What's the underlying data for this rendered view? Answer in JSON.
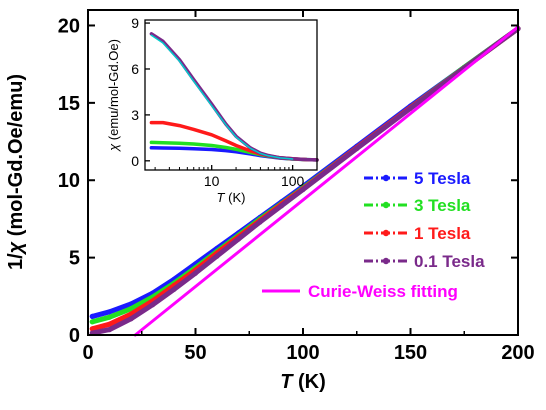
{
  "chart_data": [
    {
      "type": "line",
      "xlabel": {
        "symbol": "T",
        "unit": " (K)"
      },
      "ylabel": {
        "prefix": "1/",
        "symbol": "χ",
        "unit": " (mol-Gd.Oe/emu)"
      },
      "xlim": [
        0,
        200
      ],
      "ylim": [
        0,
        21
      ],
      "xticks": [
        0,
        50,
        100,
        150,
        200
      ],
      "yticks": [
        0,
        5,
        10,
        15,
        20
      ],
      "grid": false,
      "legend_position": "bottom-right",
      "series": [
        {
          "name": "5 Tesla",
          "color": "#1a1aff",
          "marker": "square",
          "x": [
            2,
            10,
            20,
            30,
            40,
            50,
            60,
            70,
            80,
            90,
            100,
            125,
            150,
            175,
            200
          ],
          "y": [
            1.2,
            1.5,
            2.0,
            2.7,
            3.6,
            4.6,
            5.6,
            6.6,
            7.6,
            8.6,
            9.6,
            12.2,
            14.8,
            17.3,
            19.8
          ]
        },
        {
          "name": "3 Tesla",
          "color": "#22e022",
          "marker": "circle",
          "x": [
            2,
            10,
            20,
            30,
            40,
            50,
            60,
            70,
            80,
            90,
            100,
            125,
            150,
            175,
            200
          ],
          "y": [
            0.85,
            1.15,
            1.7,
            2.45,
            3.35,
            4.35,
            5.4,
            6.45,
            7.5,
            8.5,
            9.5,
            12.1,
            14.7,
            17.3,
            19.8
          ]
        },
        {
          "name": "1 Tesla",
          "color": "#ff1a1a",
          "marker": "triangle-up",
          "x": [
            2,
            10,
            20,
            30,
            40,
            50,
            60,
            70,
            80,
            90,
            100,
            125,
            150,
            175,
            200
          ],
          "y": [
            0.4,
            0.7,
            1.35,
            2.2,
            3.2,
            4.2,
            5.3,
            6.35,
            7.4,
            8.45,
            9.45,
            12.1,
            14.7,
            17.25,
            19.8
          ]
        },
        {
          "name": "0.1 Tesla",
          "color": "#7a2a8a",
          "marker": "triangle-down",
          "x": [
            2,
            10,
            20,
            30,
            40,
            50,
            60,
            70,
            80,
            90,
            100,
            125,
            150,
            175,
            200
          ],
          "y": [
            0.12,
            0.35,
            1.05,
            1.95,
            2.95,
            4.0,
            5.1,
            6.2,
            7.3,
            8.35,
            9.4,
            12.05,
            14.65,
            17.25,
            19.8
          ]
        },
        {
          "name": "Curie-Weiss fitting",
          "color": "#ff00ff",
          "marker": "line",
          "x": [
            22,
            200
          ],
          "y": [
            0.0,
            19.9
          ]
        }
      ]
    },
    {
      "type": "line",
      "inset": true,
      "xscale": "log",
      "xlabel": {
        "symbol": "T",
        "unit": " (K)"
      },
      "ylabel": {
        "symbol": "χ",
        "unit": " (emu/mol-Gd.Oe)"
      },
      "xlim": [
        1.5,
        200
      ],
      "ylim": [
        -0.6,
        9.2
      ],
      "xticks": [
        10,
        100
      ],
      "xticklabels": [
        "10",
        "100"
      ],
      "yticks": [
        0,
        3,
        6,
        9
      ],
      "series": [
        {
          "name": "5 Tesla",
          "color": "#1a1aff",
          "x": [
            1.8,
            2.5,
            4,
            6,
            10,
            15,
            20,
            30,
            40,
            50,
            70,
            100,
            150,
            200
          ],
          "y": [
            0.85,
            0.84,
            0.82,
            0.79,
            0.74,
            0.67,
            0.59,
            0.45,
            0.34,
            0.27,
            0.18,
            0.12,
            0.08,
            0.06
          ]
        },
        {
          "name": "3 Tesla",
          "color": "#22e022",
          "x": [
            1.8,
            2.5,
            4,
            6,
            10,
            15,
            20,
            30,
            40,
            50,
            70,
            100,
            150,
            200
          ],
          "y": [
            1.2,
            1.18,
            1.15,
            1.1,
            1.0,
            0.87,
            0.75,
            0.55,
            0.4,
            0.3,
            0.19,
            0.12,
            0.08,
            0.06
          ]
        },
        {
          "name": "1 Tesla",
          "color": "#ff1a1a",
          "x": [
            1.8,
            2.5,
            4,
            6,
            10,
            15,
            20,
            30,
            40,
            50,
            70,
            100,
            150,
            200
          ],
          "y": [
            2.5,
            2.5,
            2.3,
            2.05,
            1.7,
            1.3,
            1.0,
            0.65,
            0.45,
            0.33,
            0.2,
            0.13,
            0.08,
            0.06
          ]
        },
        {
          "name": "0.1 Tesla",
          "color": "#7a2a8a",
          "x": [
            1.8,
            2.5,
            4,
            6,
            10,
            15,
            20,
            30,
            40,
            50,
            70,
            100,
            150,
            200
          ],
          "y": [
            8.3,
            7.8,
            6.6,
            5.3,
            3.7,
            2.4,
            1.6,
            0.85,
            0.5,
            0.35,
            0.2,
            0.13,
            0.08,
            0.06
          ]
        },
        {
          "name": "Curie-Weiss fitting",
          "color": "#00cccc",
          "x": [
            1.8,
            2.5,
            4,
            6,
            10,
            15,
            20,
            30,
            40,
            50,
            70,
            100
          ],
          "y": [
            8.2,
            7.7,
            6.5,
            5.2,
            3.6,
            2.35,
            1.55,
            0.82,
            0.48,
            0.33,
            0.19,
            0.12
          ]
        }
      ]
    }
  ]
}
